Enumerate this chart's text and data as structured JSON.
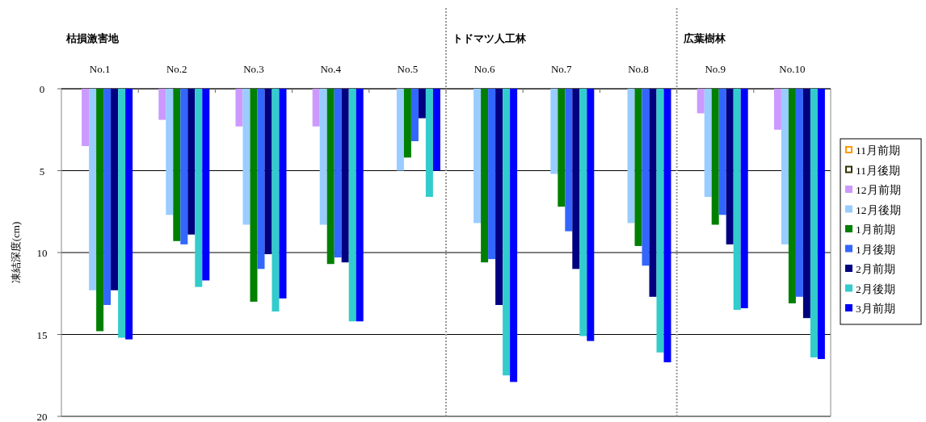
{
  "chart_data": {
    "type": "bar",
    "ylabel": "凍結深度(cm)",
    "categories": [
      "No.1",
      "No.2",
      "No.3",
      "No.4",
      "No.5",
      "No.6",
      "No.7",
      "No.8",
      "No.9",
      "No.10"
    ],
    "series": [
      {
        "name": "11月前期",
        "color": "#ff9900",
        "values": [
          null,
          null,
          null,
          null,
          null,
          null,
          null,
          null,
          null,
          null
        ]
      },
      {
        "name": "11月後期",
        "color": "#333300",
        "values": [
          null,
          null,
          null,
          null,
          null,
          null,
          null,
          null,
          null,
          null
        ]
      },
      {
        "name": "12月前期",
        "color": "#cc99ff",
        "values": [
          3.5,
          1.9,
          2.3,
          2.3,
          null,
          null,
          null,
          null,
          1.5,
          2.5
        ]
      },
      {
        "name": "12月後期",
        "color": "#99ccff",
        "values": [
          12.3,
          7.7,
          8.3,
          8.3,
          5.0,
          8.2,
          5.2,
          8.2,
          6.6,
          9.5
        ]
      },
      {
        "name": "1月前期",
        "color": "#008000",
        "values": [
          14.8,
          9.3,
          13.0,
          10.7,
          4.2,
          10.6,
          7.2,
          9.6,
          8.3,
          13.1
        ]
      },
      {
        "name": "1月後期",
        "color": "#3366ff",
        "values": [
          13.2,
          9.5,
          11.0,
          10.3,
          3.2,
          10.4,
          8.7,
          10.8,
          7.7,
          12.7
        ]
      },
      {
        "name": "2月前期",
        "color": "#000080",
        "values": [
          12.3,
          8.9,
          10.1,
          10.6,
          1.8,
          13.2,
          11.0,
          12.7,
          9.5,
          14.0
        ]
      },
      {
        "name": "2月後期",
        "color": "#33cccc",
        "values": [
          15.2,
          12.1,
          13.6,
          14.2,
          6.6,
          17.5,
          15.1,
          16.1,
          13.5,
          16.4
        ]
      },
      {
        "name": "3月前期",
        "color": "#0000ff",
        "values": [
          15.3,
          11.7,
          12.8,
          14.2,
          5.0,
          17.9,
          15.4,
          16.7,
          13.4,
          16.5
        ]
      }
    ],
    "ylim": [
      20,
      0
    ],
    "yticks": [
      0,
      5,
      10,
      15,
      20
    ],
    "grid": "y",
    "legend": "right",
    "annotations": [
      "枯損激害地",
      "トドマツ人工林",
      "広葉樹林"
    ]
  }
}
